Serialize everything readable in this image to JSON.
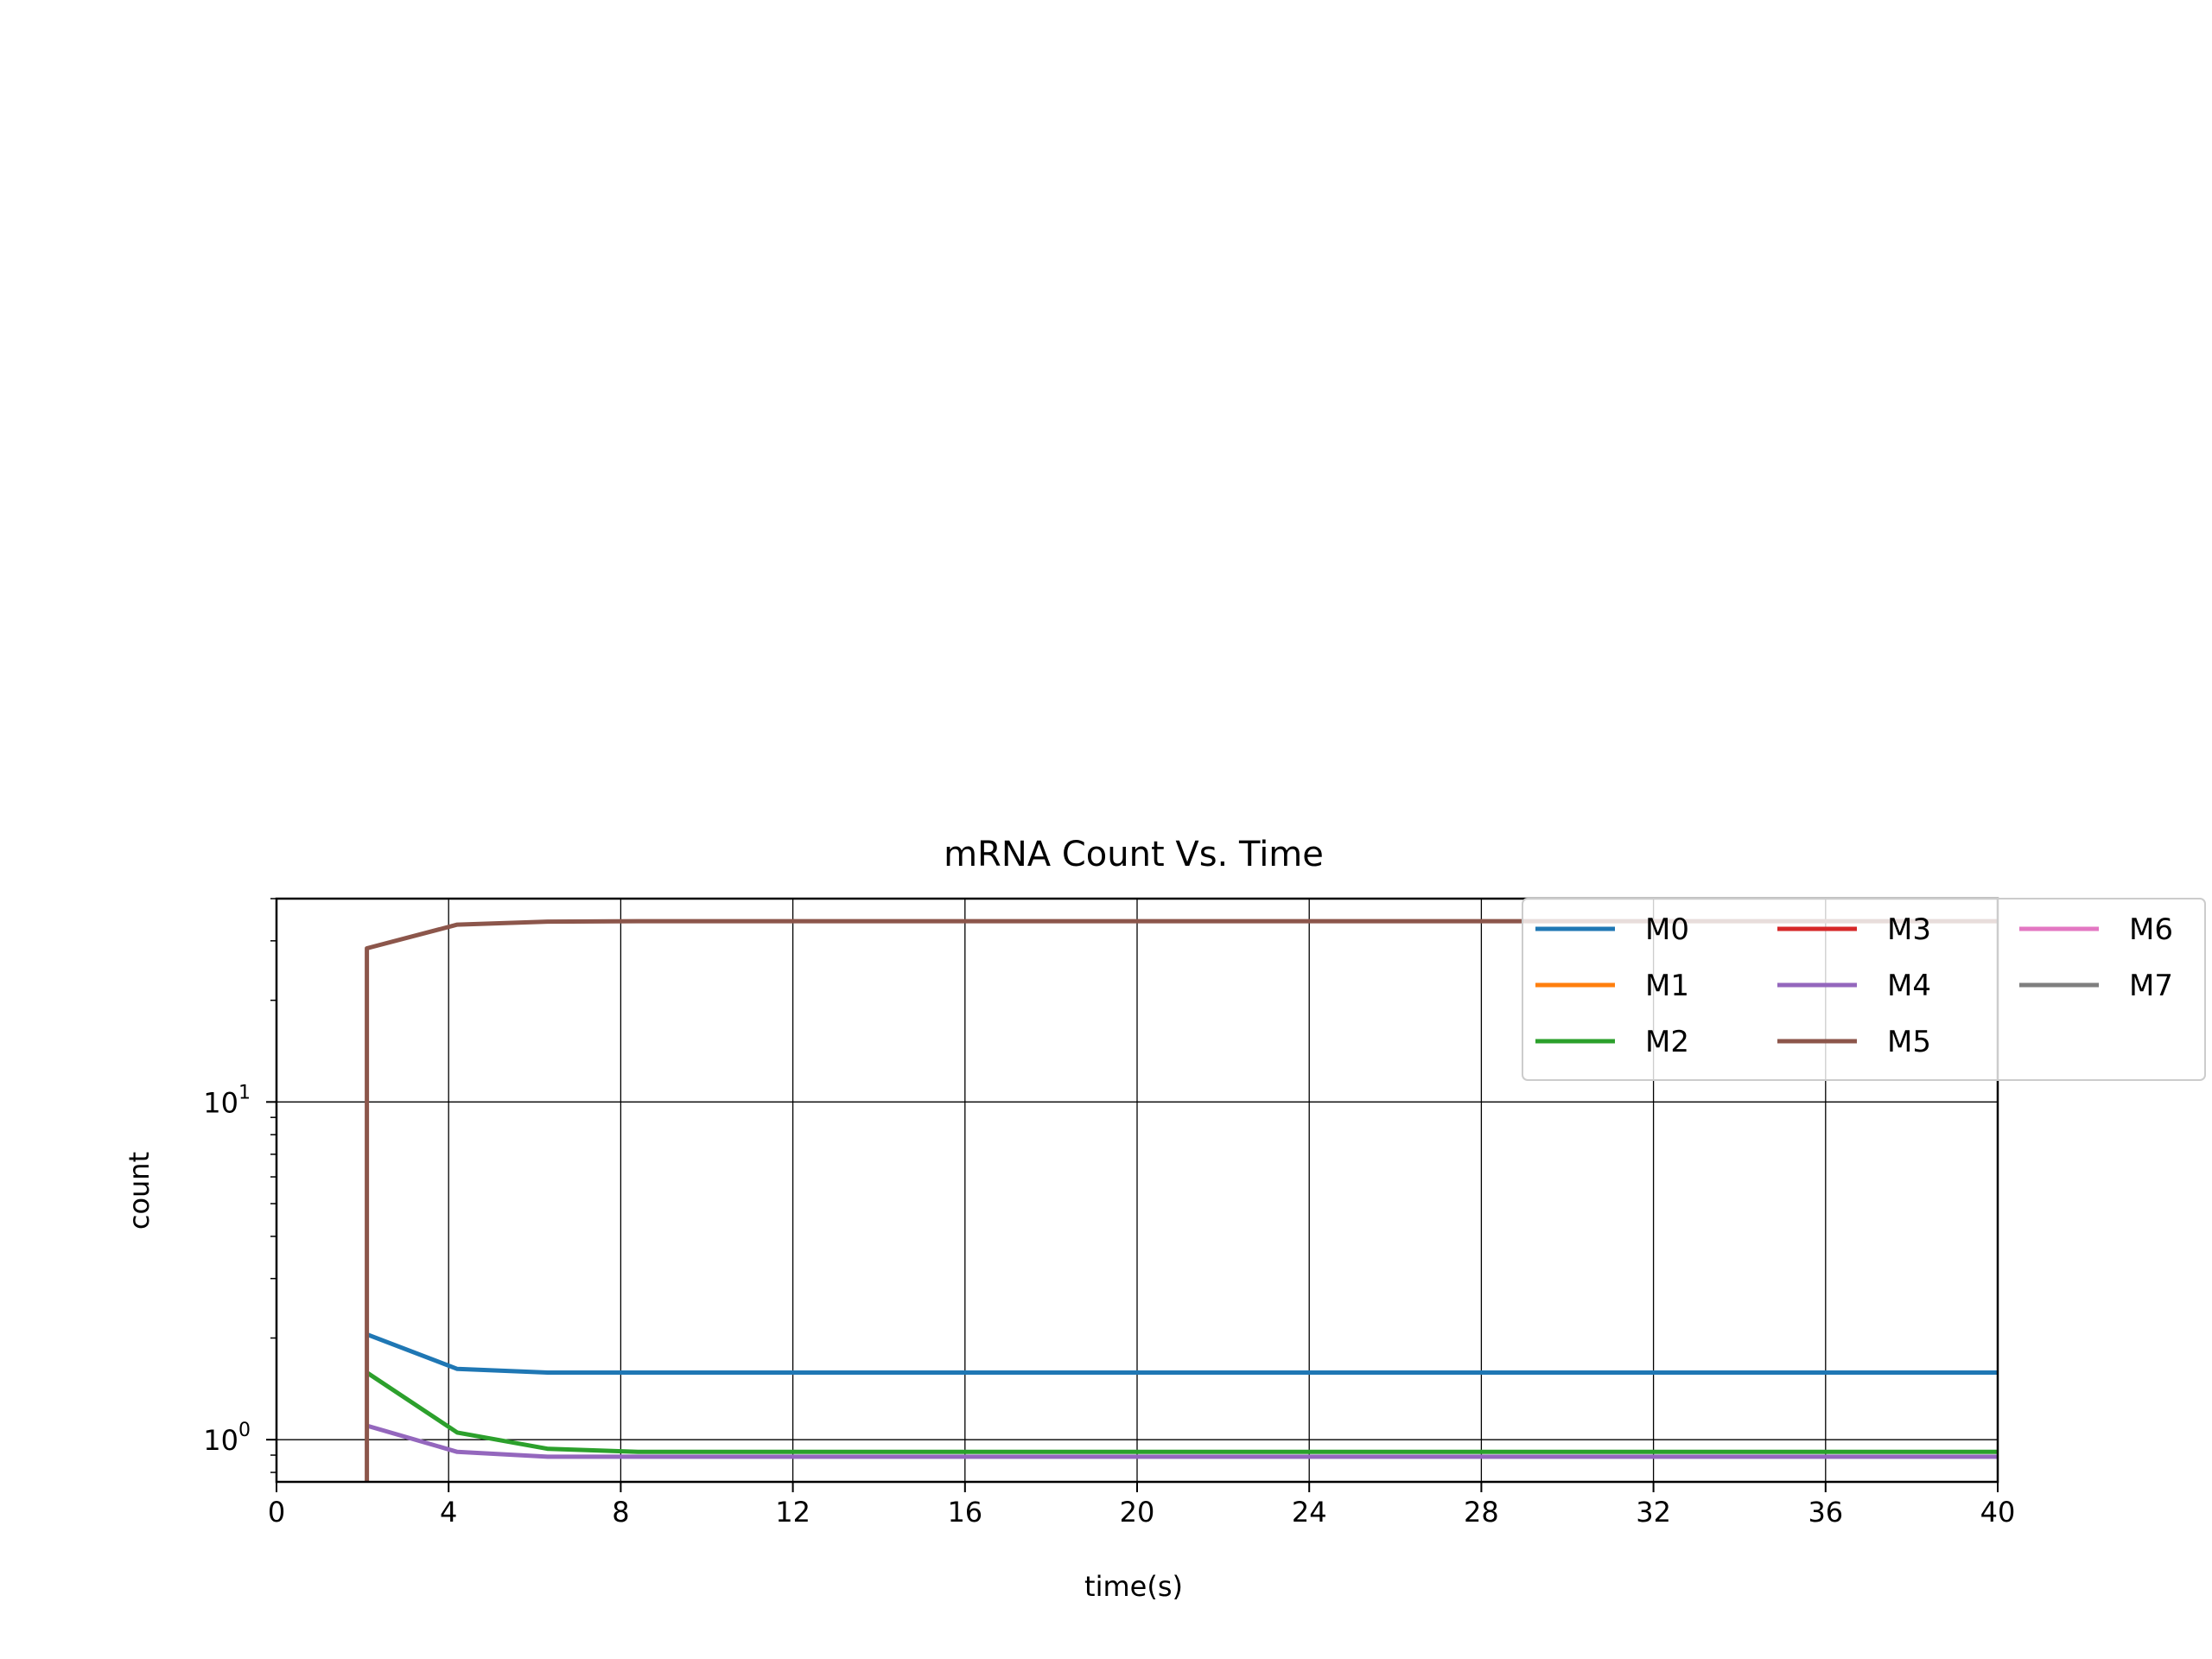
{
  "chart_data": {
    "type": "line",
    "title": "mRNA Count Vs. Time",
    "xlabel": "time(s)",
    "ylabel": "count",
    "xlim": [
      0,
      40
    ],
    "ylim": [
      0.75,
      40
    ],
    "yscale": "log",
    "grid": true,
    "legend_position": "top-right",
    "legend_columns": 3,
    "xticks": [
      0,
      4,
      8,
      12,
      16,
      20,
      24,
      28,
      32,
      36,
      40
    ],
    "yticks": [
      {
        "value": 1,
        "base": "10",
        "exp": "0"
      },
      {
        "value": 10,
        "base": "10",
        "exp": "1"
      }
    ],
    "series": [
      {
        "name": "M0",
        "color": "#1f77b4",
        "x": [
          2.1,
          4.2,
          6.3,
          8.4,
          40
        ],
        "y": [
          2.05,
          1.62,
          1.58,
          1.58,
          1.58
        ]
      },
      {
        "name": "M1",
        "color": "#ff7f0e",
        "x": [],
        "y": []
      },
      {
        "name": "M2",
        "color": "#2ca02c",
        "x": [
          2.1,
          4.2,
          6.3,
          8.4,
          40
        ],
        "y": [
          1.58,
          1.05,
          0.94,
          0.92,
          0.92
        ]
      },
      {
        "name": "M3",
        "color": "#d62728",
        "x": [],
        "y": []
      },
      {
        "name": "M4",
        "color": "#9467bd",
        "x": [
          2.1,
          4.2,
          6.3,
          8.4,
          40
        ],
        "y": [
          1.1,
          0.92,
          0.89,
          0.89,
          0.89
        ]
      },
      {
        "name": "M5",
        "color": "#8c564b",
        "x": [
          2.1,
          2.1,
          4.2,
          6.3,
          8.4,
          40
        ],
        "y": [
          0.5,
          28.5,
          33.5,
          34.2,
          34.3,
          34.3
        ]
      },
      {
        "name": "M6",
        "color": "#e377c2",
        "x": [],
        "y": []
      },
      {
        "name": "M7",
        "color": "#7f7f7f",
        "x": [],
        "y": []
      }
    ]
  }
}
